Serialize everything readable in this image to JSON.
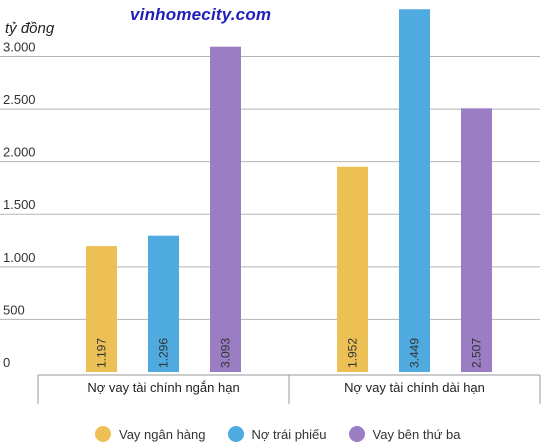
{
  "watermark": "vinhomecity.com",
  "chart_data": {
    "type": "bar",
    "unit_label": "tỷ đồng",
    "categories": [
      "Nợ vay tài chính ngắn hạn",
      "Nợ vay tài chính dài hạn"
    ],
    "series": [
      {
        "name": "Vay ngân hàng",
        "color": "#ecc055",
        "values": [
          1197,
          1952
        ],
        "labels": [
          "1.197",
          "1.952"
        ]
      },
      {
        "name": "Nợ trái phiếu",
        "color": "#4faadf",
        "values": [
          1296,
          3449
        ],
        "labels": [
          "1.296",
          "3.449"
        ]
      },
      {
        "name": "Vay bên thứ ba",
        "color": "#9b7dc3",
        "values": [
          3093,
          2507
        ],
        "labels": [
          "3.093",
          "2.507"
        ]
      }
    ],
    "yticks": [
      0,
      500,
      1000,
      1500,
      2000,
      2500,
      3000
    ],
    "ytick_labels": [
      "0",
      "500",
      "1.000",
      "1.500",
      "2.000",
      "2.500",
      "3.000"
    ],
    "ylim": [
      0,
      3480
    ],
    "grid": true,
    "legend_position": "bottom"
  }
}
